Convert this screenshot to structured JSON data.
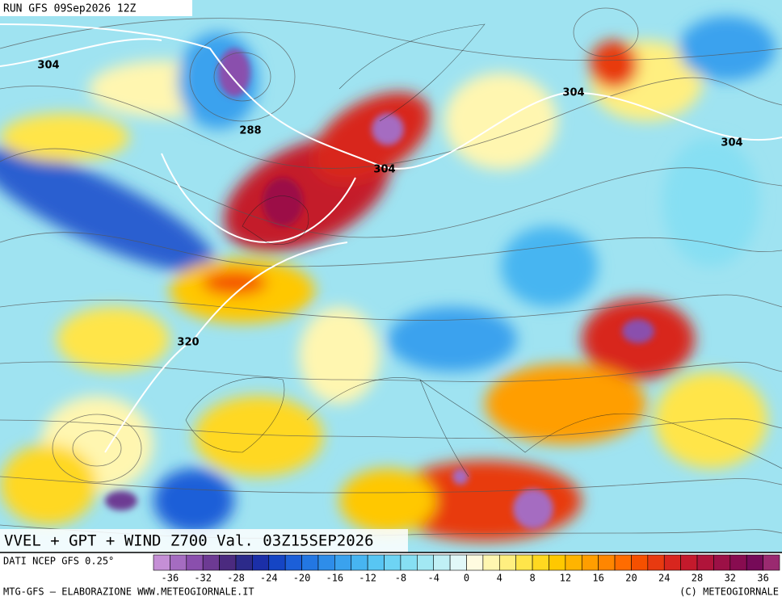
{
  "header": {
    "run": "RUN GFS 09Sep2026 12Z"
  },
  "contour_labels": [
    "304",
    "288",
    "304",
    "304",
    "304",
    "320"
  ],
  "title": "VVEL + GPT + WIND Z700 Val. 03Z15SEP2026",
  "source": "DATI NCEP GFS 0.25°",
  "colorbar": {
    "ticks": [
      -36,
      -32,
      -28,
      -24,
      -20,
      -16,
      -12,
      -8,
      -4,
      0,
      4,
      8,
      12,
      16,
      20,
      24,
      28,
      32,
      36
    ],
    "colors": [
      "#c58fd6",
      "#a56cc1",
      "#8a4fad",
      "#6d3a93",
      "#4b2a7f",
      "#2c2a8a",
      "#1b2fa8",
      "#1545c4",
      "#1c5fd8",
      "#2377e2",
      "#2e8de9",
      "#3aa2ee",
      "#47b5f1",
      "#58c6f3",
      "#6ed4f4",
      "#86dff3",
      "#a2e8f3",
      "#c0f0f5",
      "#e2f8f8",
      "#fffbe0",
      "#fff6b0",
      "#ffef80",
      "#ffe54a",
      "#ffd820",
      "#ffc800",
      "#ffb400",
      "#ff9e00",
      "#ff8600",
      "#ff6c00",
      "#f55000",
      "#e83a10",
      "#d8261e",
      "#c41a2c",
      "#b0143a",
      "#9c1046",
      "#880c50",
      "#760a58",
      "#9a2a70"
    ]
  },
  "footer": {
    "left": "MTG-GFS – ELABORAZIONE WWW.METEOGIORNALE.IT",
    "right": "(C) METEOGIORNALE"
  }
}
